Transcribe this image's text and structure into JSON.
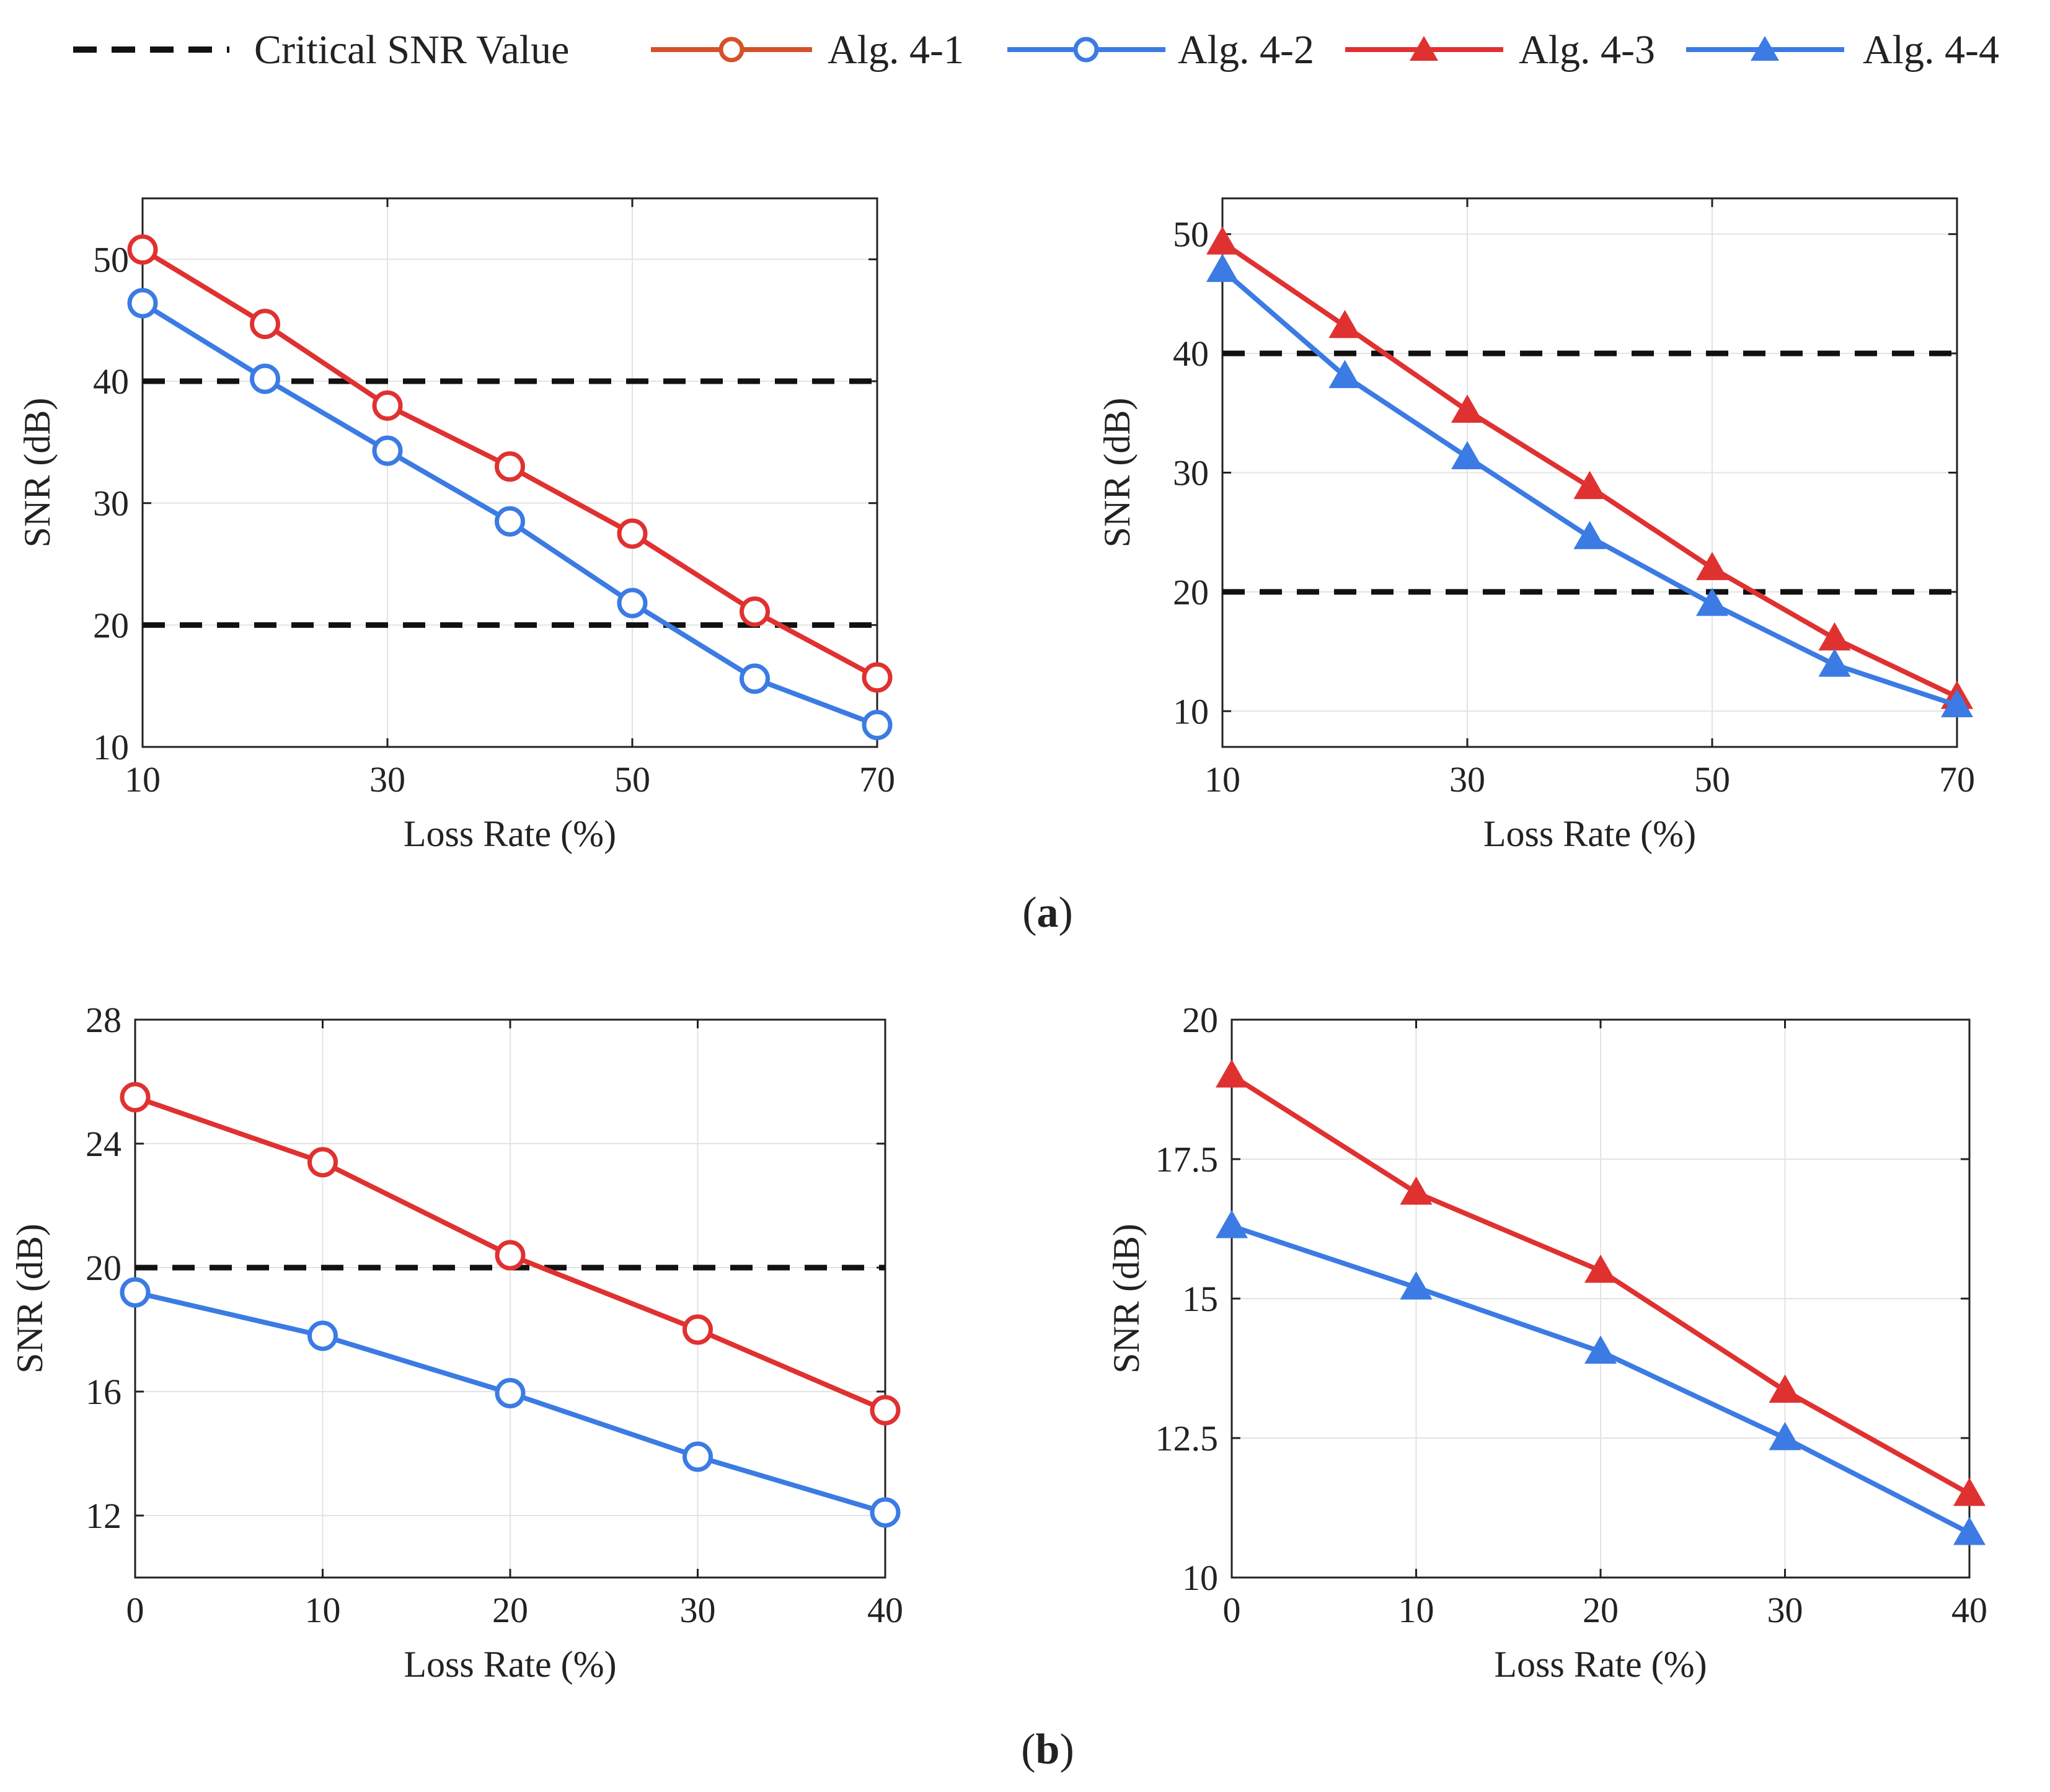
{
  "legend": {
    "critical": "Critical SNR Value",
    "items": [
      {
        "label": "Alg. 4-1",
        "color": "#d4512a",
        "marker": "circle"
      },
      {
        "label": "Alg. 4-2",
        "color": "#3b7be3",
        "marker": "circle"
      },
      {
        "label": "Alg. 4-3",
        "color": "#e03131",
        "marker": "triangle"
      },
      {
        "label": "Alg. 4-4",
        "color": "#3b7be3",
        "marker": "triangle"
      }
    ]
  },
  "panel_labels": {
    "a": {
      "open": "(",
      "letter": "a",
      "close": ")"
    },
    "b": {
      "open": "(",
      "letter": "b",
      "close": ")"
    }
  },
  "chart_data": [
    {
      "id": "a-left",
      "type": "line",
      "xlabel": "Loss Rate (%)",
      "ylabel": "SNR (dB)",
      "xlim": [
        10,
        70
      ],
      "ylim": [
        10,
        55
      ],
      "xticks": [
        10,
        30,
        50,
        70
      ],
      "yticks": [
        10,
        20,
        30,
        40,
        50
      ],
      "ytick_labels": [
        "10",
        "20",
        "30",
        "40",
        "50"
      ],
      "x": [
        10,
        20,
        30,
        40,
        50,
        60,
        70
      ],
      "critical": [
        20,
        40
      ],
      "series": [
        {
          "name": "Alg. 4-1",
          "color": "#e03131",
          "marker": "circle",
          "values": [
            50.8,
            44.7,
            38.0,
            33.0,
            27.5,
            21.1,
            15.7
          ]
        },
        {
          "name": "Alg. 4-2",
          "color": "#3b7be3",
          "marker": "circle",
          "values": [
            46.4,
            40.2,
            34.3,
            28.5,
            21.8,
            15.6,
            11.8
          ]
        }
      ]
    },
    {
      "id": "a-right",
      "type": "line",
      "xlabel": "Loss Rate (%)",
      "ylabel": "SNR (dB)",
      "xlim": [
        10,
        70
      ],
      "ylim": [
        7,
        53
      ],
      "xticks": [
        10,
        30,
        50,
        70
      ],
      "yticks": [
        10,
        20,
        30,
        40,
        50
      ],
      "ytick_labels": [
        "10",
        "20",
        "30",
        "40",
        "50"
      ],
      "x": [
        10,
        20,
        30,
        40,
        50,
        60,
        70
      ],
      "critical": [
        20,
        40
      ],
      "series": [
        {
          "name": "Alg. 4-3",
          "color": "#e03131",
          "marker": "triangle",
          "values": [
            49.3,
            42.3,
            35.2,
            28.8,
            22.0,
            16.1,
            11.2
          ]
        },
        {
          "name": "Alg. 4-4",
          "color": "#3b7be3",
          "marker": "triangle",
          "values": [
            47.0,
            38.1,
            31.3,
            24.6,
            19.0,
            13.9,
            10.5
          ]
        }
      ]
    },
    {
      "id": "b-left",
      "type": "line",
      "xlabel": "Loss Rate (%)",
      "ylabel": "SNR (dB)",
      "xlim": [
        0,
        40
      ],
      "ylim": [
        10,
        28
      ],
      "xticks": [
        0,
        10,
        20,
        30,
        40
      ],
      "yticks": [
        12,
        16,
        20,
        24,
        28
      ],
      "ytick_labels": [
        "12",
        "16",
        "20",
        "24",
        "28"
      ],
      "x": [
        0,
        10,
        20,
        30,
        40
      ],
      "critical": [
        20
      ],
      "series": [
        {
          "name": "Alg. 4-1",
          "color": "#e03131",
          "marker": "circle",
          "values": [
            25.5,
            23.4,
            20.4,
            18.0,
            15.4
          ]
        },
        {
          "name": "Alg. 4-2",
          "color": "#3b7be3",
          "marker": "circle",
          "values": [
            19.2,
            17.8,
            15.95,
            13.9,
            12.1
          ]
        }
      ]
    },
    {
      "id": "b-right",
      "type": "line",
      "xlabel": "Loss Rate (%)",
      "ylabel": "SNR (dB)",
      "xlim": [
        0,
        40
      ],
      "ylim": [
        10,
        20
      ],
      "xticks": [
        0,
        10,
        20,
        30,
        40
      ],
      "yticks": [
        10,
        12.5,
        15,
        17.5,
        20
      ],
      "ytick_labels": [
        "10",
        "12.5",
        "15",
        "17.5",
        "20"
      ],
      "x": [
        0,
        10,
        20,
        30,
        40
      ],
      "critical": [],
      "series": [
        {
          "name": "Alg. 4-3",
          "color": "#e03131",
          "marker": "triangle",
          "values": [
            19.0,
            16.9,
            15.5,
            13.35,
            11.5
          ]
        },
        {
          "name": "Alg. 4-4",
          "color": "#3b7be3",
          "marker": "triangle",
          "values": [
            16.3,
            15.2,
            14.05,
            12.5,
            10.8
          ]
        }
      ]
    }
  ]
}
